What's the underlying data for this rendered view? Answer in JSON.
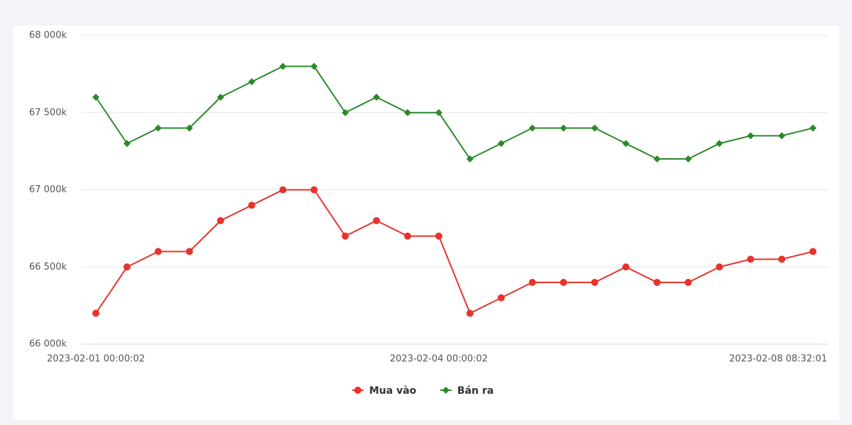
{
  "chart_data": {
    "type": "line",
    "categories": [
      "2023-02-01 00:00:02",
      null,
      null,
      null,
      null,
      null,
      null,
      null,
      null,
      null,
      null,
      "2023-02-04 00:00:02",
      null,
      null,
      null,
      null,
      null,
      null,
      null,
      null,
      null,
      null,
      null,
      "2023-02-08 08:32:01"
    ],
    "series": [
      {
        "name": "Mua vào",
        "color": "#e8332b",
        "marker": "circle",
        "values": [
          66200,
          66500,
          66600,
          66600,
          66800,
          66900,
          67000,
          67000,
          66700,
          66800,
          66700,
          66700,
          66200,
          66300,
          66400,
          66400,
          66400,
          66500,
          66400,
          66400,
          66500,
          66550,
          66550,
          66600
        ]
      },
      {
        "name": "Bán ra",
        "color": "#2b8a2b",
        "marker": "diamond",
        "values": [
          67600,
          67300,
          67400,
          67400,
          67600,
          67700,
          67800,
          67800,
          67500,
          67600,
          67500,
          67500,
          67200,
          67300,
          67400,
          67400,
          67400,
          67300,
          67200,
          67200,
          67300,
          67350,
          67350,
          67400
        ]
      }
    ],
    "ylim": [
      66000,
      68000
    ],
    "yticks": [
      {
        "value": 66000,
        "label": "66 000k"
      },
      {
        "value": 66500,
        "label": "66 500k"
      },
      {
        "value": 67000,
        "label": "67 000k"
      },
      {
        "value": 67500,
        "label": "67 500k"
      },
      {
        "value": 68000,
        "label": "68 000k"
      }
    ],
    "grid": true,
    "legend": "bottom"
  }
}
